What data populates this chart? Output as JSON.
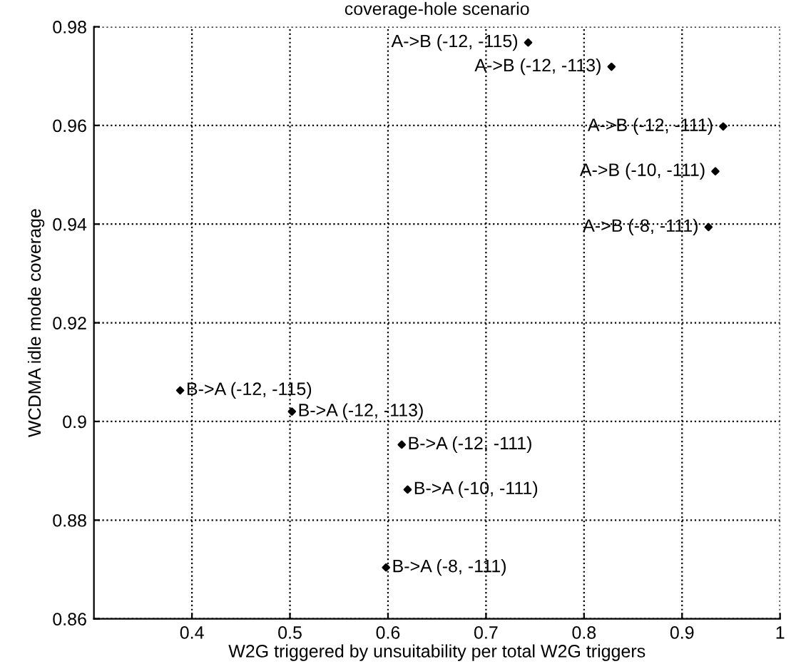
{
  "chart_data": {
    "type": "scatter",
    "title": "coverage-hole scenario",
    "xlabel": "W2G triggered by unsuitability per total W2G triggers",
    "ylabel": "WCDMA idle mode coverage",
    "x": [
      0.743,
      0.828,
      0.942,
      0.934,
      0.927,
      0.388,
      0.502,
      0.614,
      0.62,
      0.598
    ],
    "series": [
      {
        "color": "#000000",
        "values": [
          0.9768,
          0.9719,
          0.9598,
          0.9507,
          0.9394,
          0.9063,
          0.902,
          0.8953,
          0.8862,
          0.8704
        ]
      }
    ],
    "annotations": [
      {
        "text": "A->B (-12, -115)",
        "x": 0.743,
        "y": 0.9768
      },
      {
        "text": "A->B (-12, -113)",
        "x": 0.828,
        "y": 0.9719
      },
      {
        "text": "A->B (-12, -111)",
        "x": 0.942,
        "y": 0.9598
      },
      {
        "text": "A->B (-10, -111)",
        "x": 0.934,
        "y": 0.9507
      },
      {
        "text": "A->B (-8, -111)",
        "x": 0.927,
        "y": 0.9394
      },
      {
        "text": "B->A (-12, -115)",
        "x": 0.388,
        "y": 0.9063
      },
      {
        "text": "B->A (-12, -113)",
        "x": 0.502,
        "y": 0.902
      },
      {
        "text": "B->A (-12, -111)",
        "x": 0.614,
        "y": 0.8953
      },
      {
        "text": "B->A (-10, -111)",
        "x": 0.62,
        "y": 0.8862
      },
      {
        "text": "B->A (-8, -111)",
        "x": 0.598,
        "y": 0.8704
      }
    ],
    "xlim": [
      0.3,
      1
    ],
    "xticks": [
      0.4,
      0.5,
      0.6,
      0.7,
      0.8,
      0.9,
      1
    ],
    "ylim": [
      0.86,
      0.98
    ],
    "yticks": [
      0.86,
      0.88,
      0.9,
      0.92,
      0.94,
      0.96,
      0.98
    ],
    "grid": true,
    "marker": "diamond"
  }
}
